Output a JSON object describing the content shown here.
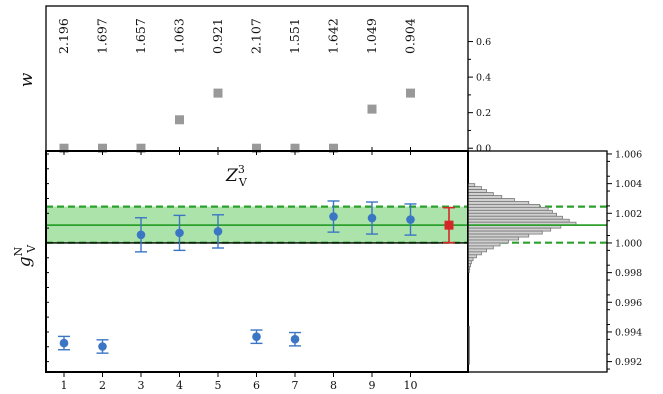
{
  "chart_data": {
    "type": "scatter",
    "x_ticks": [
      1,
      2,
      3,
      4,
      5,
      6,
      7,
      8,
      9,
      10
    ],
    "top_panel": {
      "ylabel": "w",
      "yticks": [
        "0.0",
        "0.2",
        "0.4",
        "0.6"
      ],
      "ylim": [
        -0.01,
        0.8
      ],
      "values": [
        0.0,
        0.0,
        0.0,
        0.16,
        0.31,
        0.0,
        0.0,
        0.0,
        0.22,
        0.31
      ],
      "fit_labels": [
        "2.196",
        "1.697",
        "1.657",
        "1.063",
        "0.921",
        "2.107",
        "1.551",
        "1.642",
        "1.049",
        "0.904"
      ],
      "marker_color": "#999999"
    },
    "main_panel": {
      "ylabel_base": "g",
      "ylabel_sup": "N",
      "ylabel_sub": "V",
      "title_base": "Z",
      "title_sup": "3",
      "title_sub": "V",
      "yticks": [
        "0.992",
        "0.994",
        "0.996",
        "0.998",
        "1.000",
        "1.002",
        "1.004",
        "1.006"
      ],
      "ylim": [
        0.9913,
        1.0062
      ],
      "x": [
        1,
        2,
        3,
        4,
        5,
        6,
        7,
        8,
        9,
        10
      ],
      "y": [
        0.99325,
        0.99302,
        1.00055,
        1.00068,
        1.00078,
        0.99368,
        0.99351,
        1.00178,
        1.00168,
        1.00158
      ],
      "yerr": [
        0.00045,
        0.00045,
        0.00115,
        0.00118,
        0.00112,
        0.00045,
        0.00045,
        0.00105,
        0.00108,
        0.00105
      ],
      "point_color": "#3a76c4",
      "average": {
        "value": 1.0012,
        "err": 0.00118,
        "color": "#d62728"
      },
      "band": {
        "low": 1.00002,
        "high": 1.00245,
        "color": "#66cc66"
      },
      "hist_bins": [
        {
          "y": 1.0039,
          "count": 0.08
        },
        {
          "y": 1.0037,
          "count": 0.16
        },
        {
          "y": 1.0035,
          "count": 0.22
        },
        {
          "y": 1.0033,
          "count": 0.3
        },
        {
          "y": 1.0031,
          "count": 0.4
        },
        {
          "y": 1.0029,
          "count": 0.55
        },
        {
          "y": 1.0027,
          "count": 0.72
        },
        {
          "y": 1.0025,
          "count": 0.85
        },
        {
          "y": 1.0023,
          "count": 0.95
        },
        {
          "y": 1.0021,
          "count": 1.0
        },
        {
          "y": 1.0019,
          "count": 1.05
        },
        {
          "y": 1.0017,
          "count": 1.12
        },
        {
          "y": 1.0015,
          "count": 1.2
        },
        {
          "y": 1.0013,
          "count": 1.28
        },
        {
          "y": 1.0011,
          "count": 1.1
        },
        {
          "y": 1.0009,
          "count": 0.98
        },
        {
          "y": 1.0007,
          "count": 0.88
        },
        {
          "y": 1.0005,
          "count": 0.72
        },
        {
          "y": 1.0003,
          "count": 0.6
        },
        {
          "y": 1.0001,
          "count": 0.48
        },
        {
          "y": 0.9999,
          "count": 0.38
        },
        {
          "y": 0.9997,
          "count": 0.3
        },
        {
          "y": 0.9995,
          "count": 0.22
        },
        {
          "y": 0.9993,
          "count": 0.16
        },
        {
          "y": 0.9991,
          "count": 0.1
        },
        {
          "y": 0.9989,
          "count": 0.06
        },
        {
          "y": 0.9987,
          "count": 0.04
        },
        {
          "y": 0.9985,
          "count": 0.03
        },
        {
          "y": 0.9983,
          "count": 0.02
        },
        {
          "y": 0.9981,
          "count": 0.015
        }
      ],
      "hist_spike": {
        "y_low": 0.9918,
        "y_high": 0.9944
      }
    }
  }
}
